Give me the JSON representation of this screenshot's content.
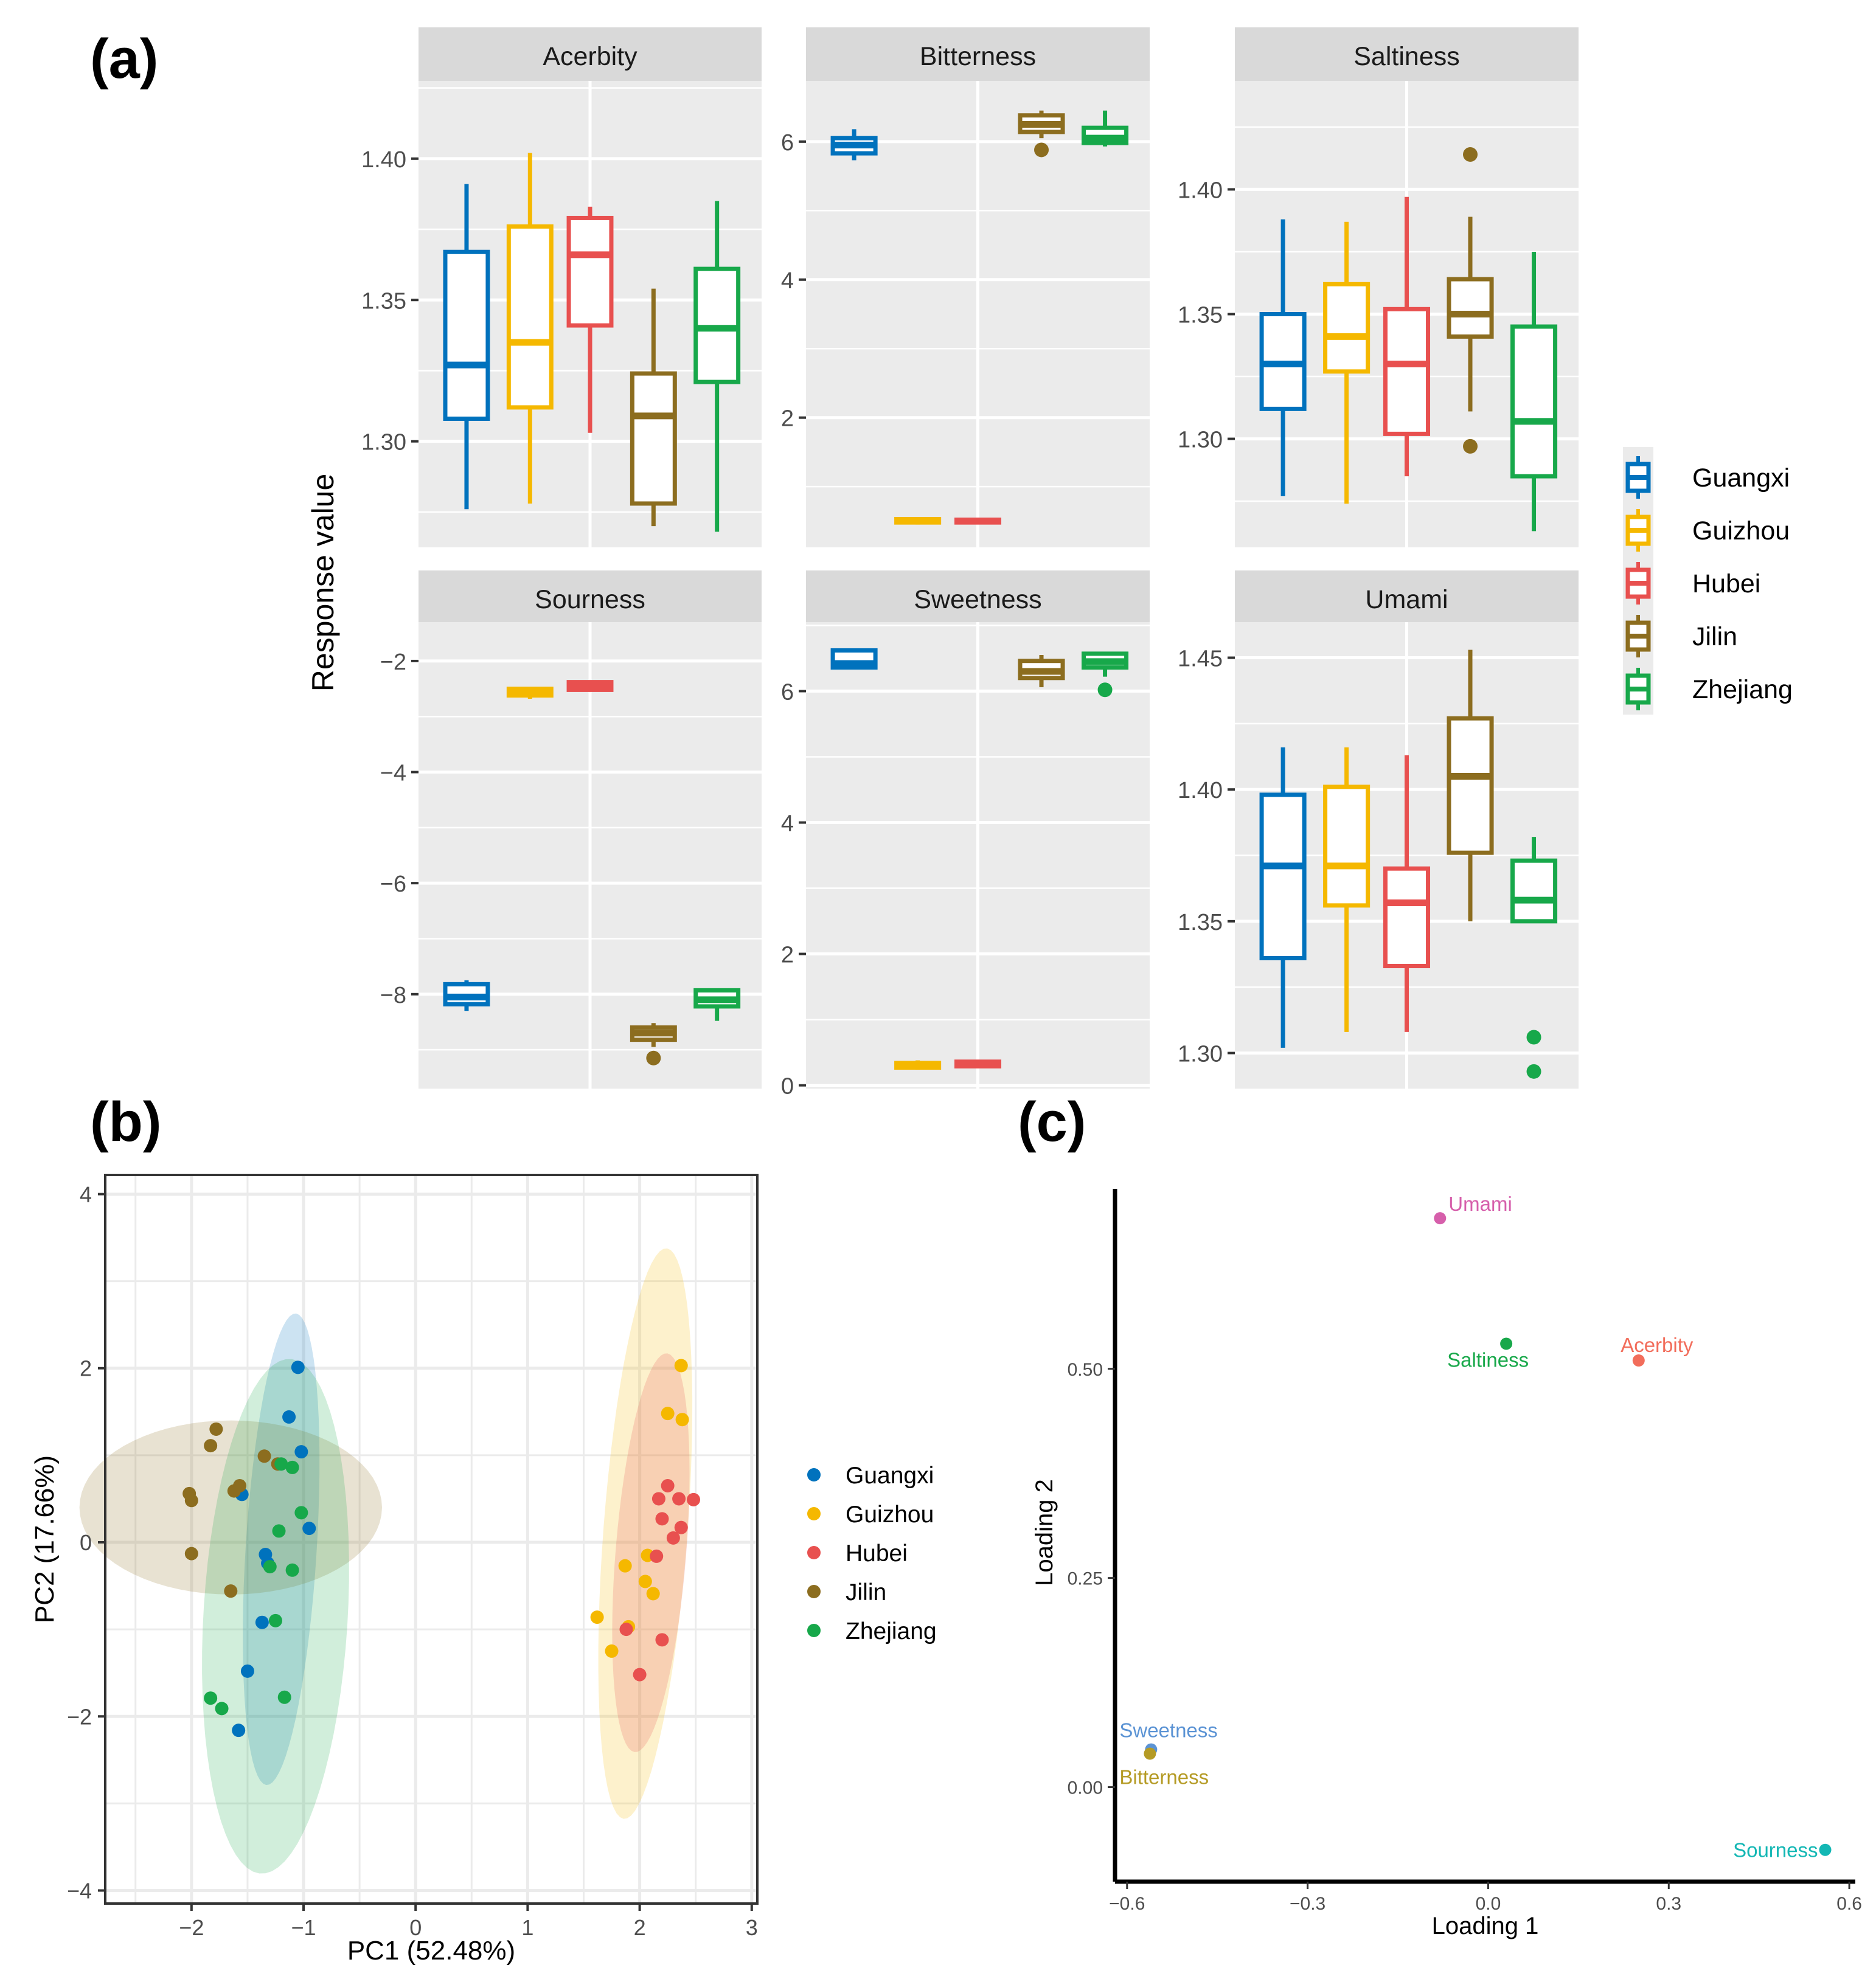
{
  "panels": {
    "a": "(a)",
    "b": "(b)",
    "c": "(c)"
  },
  "colors": {
    "Guangxi": "#0072BD",
    "Guizhou": "#F5B800",
    "Hubei": "#E8504F",
    "Jilin": "#8C6D1F",
    "Zhejiang": "#17A84A"
  },
  "chart_data": [
    {
      "id": "a",
      "type": "boxplot",
      "ylabel": "Response value",
      "groups": [
        "Guangxi",
        "Guizhou",
        "Hubei",
        "Jilin",
        "Zhejiang"
      ],
      "legend_position": "right",
      "facets": [
        {
          "name": "Acerbity",
          "ylim": [
            1.2625,
            1.4275
          ],
          "ticks": [
            1.3,
            1.35,
            1.4
          ],
          "tick_labels": [
            "1.30",
            "1.35",
            "1.40"
          ],
          "boxes": [
            {
              "group": "Guangxi",
              "min": 1.276,
              "q1": 1.308,
              "median": 1.327,
              "q3": 1.367,
              "max": 1.391,
              "outliers": []
            },
            {
              "group": "Guizhou",
              "min": 1.278,
              "q1": 1.312,
              "median": 1.335,
              "q3": 1.376,
              "max": 1.402,
              "outliers": []
            },
            {
              "group": "Hubei",
              "min": 1.303,
              "q1": 1.341,
              "median": 1.366,
              "q3": 1.379,
              "max": 1.383,
              "outliers": []
            },
            {
              "group": "Jilin",
              "min": 1.27,
              "q1": 1.278,
              "median": 1.309,
              "q3": 1.324,
              "max": 1.354,
              "outliers": []
            },
            {
              "group": "Zhejiang",
              "min": 1.268,
              "q1": 1.321,
              "median": 1.34,
              "q3": 1.361,
              "max": 1.385,
              "outliers": []
            }
          ]
        },
        {
          "name": "Bitterness",
          "ylim": [
            0.12,
            6.88
          ],
          "ticks": [
            2,
            4,
            6
          ],
          "tick_labels": [
            "2",
            "4",
            "6"
          ],
          "boxes": [
            {
              "group": "Guangxi",
              "min": 5.73,
              "q1": 5.83,
              "median": 5.95,
              "q3": 6.05,
              "max": 6.18,
              "outliers": []
            },
            {
              "group": "Guizhou",
              "min": 0.45,
              "q1": 0.48,
              "median": 0.5,
              "q3": 0.53,
              "max": 0.55,
              "outliers": []
            },
            {
              "group": "Hubei",
              "min": 0.46,
              "q1": 0.48,
              "median": 0.5,
              "q3": 0.52,
              "max": 0.54,
              "outliers": []
            },
            {
              "group": "Jilin",
              "min": 6.05,
              "q1": 6.14,
              "median": 6.25,
              "q3": 6.38,
              "max": 6.45,
              "outliers": [
                5.88
              ]
            },
            {
              "group": "Zhejiang",
              "min": 5.93,
              "q1": 5.98,
              "median": 6.05,
              "q3": 6.2,
              "max": 6.45,
              "outliers": []
            }
          ]
        },
        {
          "name": "Saltiness",
          "ylim": [
            1.2565,
            1.4435
          ],
          "ticks": [
            1.3,
            1.35,
            1.4
          ],
          "tick_labels": [
            "1.30",
            "1.35",
            "1.40"
          ],
          "boxes": [
            {
              "group": "Guangxi",
              "min": 1.277,
              "q1": 1.312,
              "median": 1.33,
              "q3": 1.35,
              "max": 1.388,
              "outliers": []
            },
            {
              "group": "Guizhou",
              "min": 1.274,
              "q1": 1.327,
              "median": 1.341,
              "q3": 1.362,
              "max": 1.387,
              "outliers": []
            },
            {
              "group": "Hubei",
              "min": 1.285,
              "q1": 1.302,
              "median": 1.33,
              "q3": 1.352,
              "max": 1.397,
              "outliers": []
            },
            {
              "group": "Jilin",
              "min": 1.311,
              "q1": 1.341,
              "median": 1.35,
              "q3": 1.364,
              "max": 1.389,
              "outliers": [
                1.414,
                1.297
              ]
            },
            {
              "group": "Zhejiang",
              "min": 1.263,
              "q1": 1.285,
              "median": 1.307,
              "q3": 1.345,
              "max": 1.375,
              "outliers": []
            }
          ]
        },
        {
          "name": "Sourness",
          "ylim": [
            -9.7,
            -1.3
          ],
          "ticks": [
            -2,
            -4,
            -6,
            -8
          ],
          "tick_labels": [
            "−2",
            "−4",
            "−6",
            "−8"
          ],
          "boxes": [
            {
              "group": "Guangxi",
              "min": -8.3,
              "q1": -8.18,
              "median": -8.05,
              "q3": -7.82,
              "max": -7.75,
              "outliers": []
            },
            {
              "group": "Guizhou",
              "min": -2.68,
              "q1": -2.62,
              "median": -2.57,
              "q3": -2.5,
              "max": -2.47,
              "outliers": []
            },
            {
              "group": "Hubei",
              "min": -2.53,
              "q1": -2.52,
              "median": -2.45,
              "q3": -2.38,
              "max": -2.35,
              "outliers": []
            },
            {
              "group": "Jilin",
              "min": -8.95,
              "q1": -8.82,
              "median": -8.7,
              "q3": -8.6,
              "max": -8.52,
              "outliers": [
                -9.15
              ]
            },
            {
              "group": "Zhejiang",
              "min": -8.48,
              "q1": -8.22,
              "median": -8.1,
              "q3": -7.93,
              "max": -7.9,
              "outliers": []
            }
          ]
        },
        {
          "name": "Sweetness",
          "ylim": [
            -0.05,
            7.05
          ],
          "ticks": [
            0,
            2,
            4,
            6
          ],
          "tick_labels": [
            "0",
            "2",
            "4",
            "6"
          ],
          "boxes": [
            {
              "group": "Guangxi",
              "min": 6.35,
              "q1": 6.36,
              "median": 6.42,
              "q3": 6.62,
              "max": 6.63,
              "outliers": []
            },
            {
              "group": "Guizhou",
              "min": 0.24,
              "q1": 0.27,
              "median": 0.3,
              "q3": 0.34,
              "max": 0.38,
              "outliers": []
            },
            {
              "group": "Hubei",
              "min": 0.28,
              "q1": 0.29,
              "median": 0.32,
              "q3": 0.36,
              "max": 0.37,
              "outliers": []
            },
            {
              "group": "Jilin",
              "min": 6.06,
              "q1": 6.2,
              "median": 6.3,
              "q3": 6.46,
              "max": 6.55,
              "outliers": []
            },
            {
              "group": "Zhejiang",
              "min": 6.22,
              "q1": 6.36,
              "median": 6.45,
              "q3": 6.57,
              "max": 6.6,
              "outliers": [
                6.02
              ]
            }
          ]
        },
        {
          "name": "Umami",
          "ylim": [
            1.2865,
            1.4635
          ],
          "ticks": [
            1.3,
            1.35,
            1.4,
            1.45
          ],
          "tick_labels": [
            "1.30",
            "1.35",
            "1.40",
            "1.45"
          ],
          "boxes": [
            {
              "group": "Guangxi",
              "min": 1.302,
              "q1": 1.336,
              "median": 1.371,
              "q3": 1.398,
              "max": 1.416,
              "outliers": []
            },
            {
              "group": "Guizhou",
              "min": 1.308,
              "q1": 1.356,
              "median": 1.371,
              "q3": 1.401,
              "max": 1.416,
              "outliers": []
            },
            {
              "group": "Hubei",
              "min": 1.308,
              "q1": 1.333,
              "median": 1.357,
              "q3": 1.37,
              "max": 1.413,
              "outliers": []
            },
            {
              "group": "Jilin",
              "min": 1.35,
              "q1": 1.376,
              "median": 1.405,
              "q3": 1.427,
              "max": 1.453,
              "outliers": []
            },
            {
              "group": "Zhejiang",
              "min": 1.35,
              "q1": 1.35,
              "median": 1.358,
              "q3": 1.373,
              "max": 1.382,
              "outliers": [
                1.306,
                1.293
              ]
            }
          ]
        }
      ]
    },
    {
      "id": "b",
      "type": "scatter",
      "xlabel": "PC1 (52.48%)",
      "ylabel": "PC2 (17.66%)",
      "xlim": [
        -2.77,
        3.05
      ],
      "ylim": [
        -4.15,
        4.22
      ],
      "xticks": [
        -2,
        -1,
        0,
        1,
        2,
        3
      ],
      "xtick_labels": [
        "−2",
        "−1",
        "0",
        "1",
        "2",
        "3"
      ],
      "yticks": [
        -4,
        -2,
        0,
        2,
        4
      ],
      "ytick_labels": [
        "−4",
        "−2",
        "0",
        "2",
        "4"
      ],
      "grid": true,
      "legend_position": "right",
      "series": [
        {
          "name": "Guangxi",
          "points": [
            [
              -1.05,
              2.01
            ],
            [
              -1.13,
              1.44
            ],
            [
              -1.02,
              1.04
            ],
            [
              -1.55,
              0.55
            ],
            [
              -0.95,
              0.16
            ],
            [
              -1.34,
              -0.14
            ],
            [
              -1.32,
              -0.24
            ],
            [
              -1.37,
              -0.92
            ],
            [
              -1.5,
              -1.48
            ],
            [
              -1.58,
              -2.16
            ]
          ],
          "ellipse": {
            "cx": -1.2,
            "cy": -0.08,
            "rx": 2.75,
            "ry": 0.32,
            "angle": 80
          }
        },
        {
          "name": "Guizhou",
          "points": [
            [
              2.37,
              2.03
            ],
            [
              2.25,
              1.48
            ],
            [
              2.38,
              1.41
            ],
            [
              1.62,
              -0.86
            ],
            [
              1.75,
              -1.25
            ],
            [
              1.9,
              -0.97
            ],
            [
              2.05,
              -0.45
            ],
            [
              2.12,
              -0.59
            ],
            [
              2.07,
              -0.15
            ],
            [
              1.87,
              -0.27
            ]
          ],
          "ellipse": {
            "cx": 2.05,
            "cy": 0.1,
            "rx": 3.35,
            "ry": 0.38,
            "angle": 78
          }
        },
        {
          "name": "Hubei",
          "points": [
            [
              2.25,
              0.65
            ],
            [
              2.17,
              0.5
            ],
            [
              2.35,
              0.5
            ],
            [
              2.48,
              0.49
            ],
            [
              2.2,
              0.27
            ],
            [
              2.37,
              0.17
            ],
            [
              2.3,
              0.05
            ],
            [
              2.15,
              -0.16
            ],
            [
              1.88,
              -1.0
            ],
            [
              2.2,
              -1.12
            ],
            [
              2.0,
              -1.52
            ]
          ],
          "ellipse": {
            "cx": 2.1,
            "cy": -0.12,
            "rx": 2.35,
            "ry": 0.32,
            "angle": 77
          }
        },
        {
          "name": "Jilin",
          "points": [
            [
              -1.78,
              1.3
            ],
            [
              -1.83,
              1.11
            ],
            [
              -1.35,
              0.99
            ],
            [
              -2.02,
              0.56
            ],
            [
              -2.0,
              0.48
            ],
            [
              -1.62,
              0.59
            ],
            [
              -1.57,
              0.65
            ],
            [
              -1.23,
              0.9
            ],
            [
              -1.65,
              -0.56
            ],
            [
              -2.0,
              -0.13
            ]
          ],
          "ellipse": {
            "cx": -1.65,
            "cy": 0.4,
            "rx": 1.35,
            "ry": 1.0,
            "angle": 0
          }
        },
        {
          "name": "Zhejiang",
          "points": [
            [
              -1.2,
              0.9
            ],
            [
              -1.1,
              0.86
            ],
            [
              -1.02,
              0.34
            ],
            [
              -1.22,
              0.13
            ],
            [
              -1.3,
              -0.28
            ],
            [
              -1.1,
              -0.32
            ],
            [
              -1.25,
              -0.9
            ],
            [
              -1.17,
              -1.78
            ],
            [
              -1.83,
              -1.79
            ],
            [
              -1.73,
              -1.91
            ]
          ],
          "ellipse": {
            "cx": -1.25,
            "cy": -0.85,
            "rx": 3.0,
            "ry": 0.65,
            "angle": 80
          }
        }
      ]
    },
    {
      "id": "c",
      "type": "scatter",
      "xlabel": "Loading 1",
      "ylabel": "Loading 2",
      "xlim": [
        -0.62,
        0.61
      ],
      "ylim": [
        -0.113,
        0.715
      ],
      "xticks": [
        -0.6,
        -0.3,
        0.0,
        0.3,
        0.6
      ],
      "xtick_labels": [
        "−0.6",
        "−0.3",
        "0.0",
        "0.3",
        "0.6"
      ],
      "yticks": [
        0.0,
        0.25,
        0.5
      ],
      "ytick_labels": [
        "0.00",
        "0.25",
        "0.50"
      ],
      "grid": false,
      "points": [
        {
          "label": "Umami",
          "x": -0.08,
          "y": 0.68,
          "color": "#D65FAB"
        },
        {
          "label": "Saltiness",
          "x": 0.03,
          "y": 0.53,
          "color": "#18A84A"
        },
        {
          "label": "Acerbity",
          "x": 0.25,
          "y": 0.51,
          "color": "#F26D5B"
        },
        {
          "label": "Sweetness",
          "x": -0.56,
          "y": 0.045,
          "color": "#5B93D4"
        },
        {
          "label": "Bitterness",
          "x": -0.562,
          "y": 0.04,
          "color": "#B59B25"
        },
        {
          "label": "Sourness",
          "x": 0.56,
          "y": -0.075,
          "color": "#13B7B4"
        }
      ]
    }
  ]
}
